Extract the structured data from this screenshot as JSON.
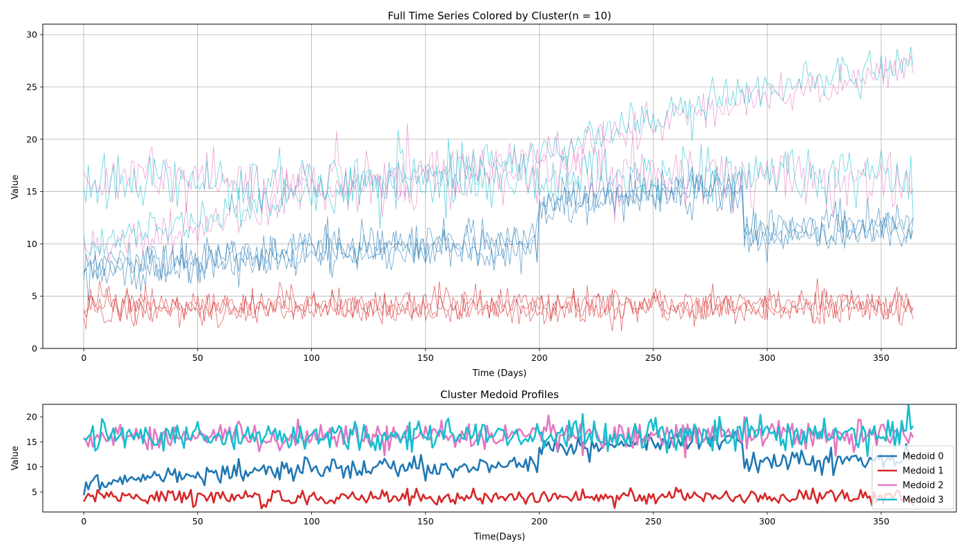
{
  "chart_data": [
    {
      "type": "line",
      "title": "Full Time Series Colored by Cluster(n = 10)",
      "xlabel": "Time (Days)",
      "ylabel": "Value",
      "xlim": [
        -18,
        383
      ],
      "ylim": [
        0,
        31
      ],
      "xticks": [
        0,
        50,
        100,
        150,
        200,
        250,
        300,
        350
      ],
      "yticks": [
        0,
        5,
        10,
        15,
        20,
        25,
        30
      ],
      "grid": true,
      "legend": "none",
      "clusters": [
        {
          "cluster": 0,
          "color": "#1f77b4"
        },
        {
          "cluster": 1,
          "color": "#d62728"
        },
        {
          "cluster": 2,
          "color": "#e377c2"
        },
        {
          "cluster": 3,
          "color": "#17becf"
        }
      ],
      "series": [
        {
          "cluster": 0,
          "days": 365,
          "noise": 1.0,
          "profile": [
            [
              0,
              7
            ],
            [
              100,
              9.5
            ],
            [
              199,
              10.5
            ],
            [
              200,
              14
            ],
            [
              289,
              15.5
            ],
            [
              290,
              11
            ],
            [
              364,
              11.5
            ]
          ]
        },
        {
          "cluster": 0,
          "days": 365,
          "noise": 1.0,
          "profile": [
            [
              0,
              7.5
            ],
            [
              100,
              9
            ],
            [
              199,
              10
            ],
            [
              200,
              14.5
            ],
            [
              289,
              15
            ],
            [
              290,
              10.5
            ],
            [
              364,
              11.5
            ]
          ]
        },
        {
          "cluster": 0,
          "days": 365,
          "noise": 1.0,
          "profile": [
            [
              0,
              8
            ],
            [
              100,
              9.2
            ],
            [
              199,
              10.2
            ],
            [
              200,
              13.5
            ],
            [
              289,
              16
            ],
            [
              290,
              11.5
            ],
            [
              364,
              12
            ]
          ]
        },
        {
          "cluster": 1,
          "days": 365,
          "noise": 0.8,
          "profile": [
            [
              0,
              4
            ],
            [
              364,
              4
            ]
          ]
        },
        {
          "cluster": 1,
          "days": 365,
          "noise": 0.8,
          "profile": [
            [
              0,
              4.2
            ],
            [
              364,
              3.8
            ]
          ]
        },
        {
          "cluster": 1,
          "days": 365,
          "noise": 0.8,
          "profile": [
            [
              0,
              3.9
            ],
            [
              364,
              4.1
            ]
          ]
        },
        {
          "cluster": 2,
          "days": 365,
          "noise": 1.5,
          "profile": [
            [
              0,
              16
            ],
            [
              364,
              16.5
            ]
          ]
        },
        {
          "cluster": 2,
          "days": 365,
          "noise": 1.0,
          "profile": [
            [
              0,
              9
            ],
            [
              100,
              15
            ],
            [
              180,
              17.5
            ],
            [
              250,
              21.5
            ],
            [
              300,
              24
            ],
            [
              364,
              27
            ]
          ]
        },
        {
          "cluster": 3,
          "days": 365,
          "noise": 1.5,
          "profile": [
            [
              0,
              16
            ],
            [
              364,
              16.5
            ]
          ]
        },
        {
          "cluster": 3,
          "days": 365,
          "noise": 1.0,
          "profile": [
            [
              0,
              9.5
            ],
            [
              100,
              15
            ],
            [
              180,
              17.5
            ],
            [
              250,
              22
            ],
            [
              300,
              24.5
            ],
            [
              364,
              27.5
            ]
          ]
        }
      ]
    },
    {
      "type": "line",
      "title": "Cluster Medoid Profiles",
      "xlabel": "Time(Days)",
      "ylabel": "Value",
      "xlim": [
        -18,
        383
      ],
      "ylim": [
        1,
        22.5
      ],
      "xticks": [
        0,
        50,
        100,
        150,
        200,
        250,
        300,
        350
      ],
      "yticks": [
        5,
        10,
        15,
        20
      ],
      "grid": false,
      "legend": "lower-right",
      "series": [
        {
          "name": "Medoid 0",
          "color": "#1f77b4",
          "days": 365,
          "noise": 1.0,
          "profile": [
            [
              0,
              7
            ],
            [
              100,
              9.5
            ],
            [
              199,
              10.5
            ],
            [
              200,
              14
            ],
            [
              289,
              15.5
            ],
            [
              290,
              11
            ],
            [
              364,
              11.5
            ]
          ]
        },
        {
          "name": "Medoid 1",
          "color": "#d62728",
          "days": 365,
          "noise": 0.8,
          "profile": [
            [
              0,
              4
            ],
            [
              364,
              4
            ]
          ]
        },
        {
          "name": "Medoid 2",
          "color": "#e377c2",
          "days": 365,
          "noise": 1.5,
          "profile": [
            [
              0,
              16
            ],
            [
              364,
              16.5
            ]
          ]
        },
        {
          "name": "Medoid 3",
          "color": "#17becf",
          "days": 365,
          "noise": 1.5,
          "profile": [
            [
              0,
              16
            ],
            [
              364,
              16.5
            ]
          ]
        }
      ]
    }
  ]
}
